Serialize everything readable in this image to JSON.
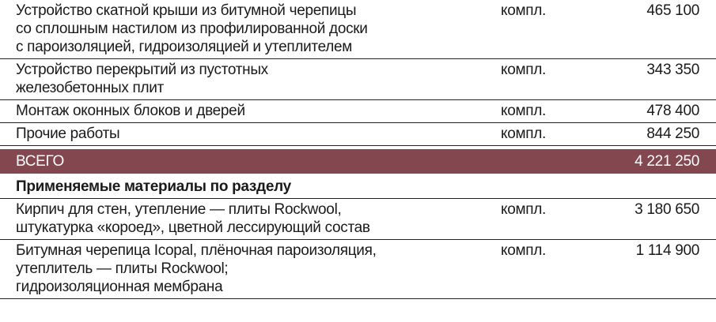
{
  "works": [
    {
      "name": "Устройство скатной крыши из битумной черепицы\nсо сплошным настилом из профилированной доски\nс пароизоляцией, гидроизоляцией и утеплителем",
      "unit": "компл.",
      "value": "465 100"
    },
    {
      "name": "Устройство перекрытий из пустотных\nжелезобетонных плит",
      "unit": "компл.",
      "value": "343 350"
    },
    {
      "name": "Монтаж оконных блоков и дверей",
      "unit": "компл.",
      "value": "478 400"
    },
    {
      "name": "Прочие работы",
      "unit": "компл.",
      "value": "844 250"
    }
  ],
  "total": {
    "label": "ВСЕГО",
    "value": "4 221 250",
    "color": "#83474f"
  },
  "materials_heading": "Применяемые материалы по разделу",
  "materials": [
    {
      "name": "Кирпич для стен, утепление — плиты Rockwool,\nштукатурка «короед», цветной лессирующий состав",
      "unit": "компл.",
      "value": "3 180 650"
    },
    {
      "name": "Битумная черепица Icopal, плёночная пароизоляция,\nутеплитель — плиты Rockwool;\nгидроизоляционная мембрана",
      "unit": "компл.",
      "value": "1 114 900"
    }
  ]
}
